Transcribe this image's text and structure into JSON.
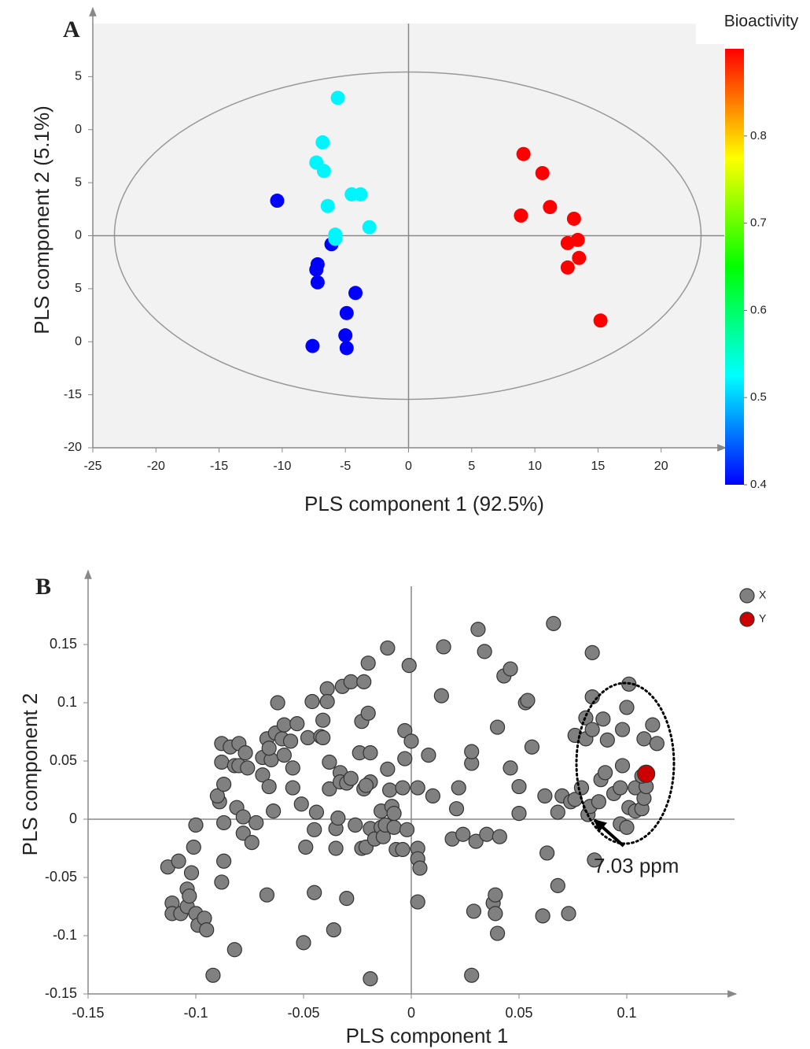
{
  "chart_data": [
    {
      "type": "scatter",
      "panel": "A",
      "xlabel": "PLS component 1 (92.5%)",
      "ylabel": "PLS component 2 (5.1%)",
      "xlim": [
        -25,
        25
      ],
      "ylim": [
        -20,
        20
      ],
      "xticks": [
        -25,
        -20,
        -15,
        -10,
        -5,
        0,
        5,
        10,
        15,
        20
      ],
      "yticks": [
        {
          "value": 15,
          "label": "5"
        },
        {
          "value": 10,
          "label": "0"
        },
        {
          "value": 5,
          "label": "5"
        },
        0,
        {
          "value": -5,
          "label": "5"
        },
        {
          "value": -10,
          "label": "0"
        },
        -15,
        -20
      ],
      "background": "#f2f2f2",
      "x": [
        -10.4,
        -6.1,
        -7.2,
        -7.3,
        -7.2,
        -4.2,
        -4.9,
        -5.0,
        -4.9,
        -7.6,
        -5.6,
        -6.8,
        -7.3,
        -6.7,
        -4.5,
        -3.8,
        -6.4,
        -3.1,
        -5.8,
        -5.8,
        9.1,
        10.6,
        11.2,
        8.9,
        13.1,
        13.4,
        12.6,
        13.5,
        12.6,
        15.2
      ],
      "y": [
        3.3,
        -0.8,
        -2.7,
        -3.2,
        -4.4,
        -5.4,
        -7.3,
        -9.4,
        -10.6,
        -10.4,
        13.0,
        8.8,
        6.9,
        6.1,
        3.9,
        3.9,
        2.8,
        0.8,
        0.1,
        -0.3,
        7.7,
        5.9,
        2.7,
        1.9,
        1.6,
        -0.4,
        -0.7,
        -2.1,
        -3.0,
        -8.0
      ],
      "bioactivity": [
        0.4,
        0.4,
        0.4,
        0.4,
        0.4,
        0.4,
        0.4,
        0.4,
        0.4,
        0.4,
        0.52,
        0.52,
        0.52,
        0.52,
        0.52,
        0.52,
        0.52,
        0.52,
        0.52,
        0.52,
        0.9,
        0.9,
        0.9,
        0.9,
        0.9,
        0.9,
        0.9,
        0.9,
        0.9,
        0.9
      ],
      "colorbar": {
        "title": "Bioactivity",
        "lim": [
          0.4,
          0.9
        ],
        "ticks": [
          0.4,
          0.5,
          0.6,
          0.7,
          0.8
        ]
      }
    },
    {
      "type": "scatter",
      "panel": "B",
      "xlabel": "PLS component 1",
      "ylabel": "PLS component 2",
      "xlim": [
        -0.15,
        0.15
      ],
      "ylim": [
        -0.15,
        0.2
      ],
      "xticks": [
        -0.15,
        -0.1,
        -0.05,
        0,
        0.05,
        0.1
      ],
      "yticks": [
        -0.15,
        -0.1,
        -0.05,
        0,
        0.05,
        0.1,
        0.15
      ],
      "legend": "top-right",
      "annotation": "7.03 ppm",
      "series": [
        {
          "name": "X",
          "color": "#808080",
          "x": [
            -0.113,
            -0.111,
            -0.111,
            -0.108,
            -0.107,
            -0.104,
            -0.104,
            -0.103,
            -0.101,
            -0.1,
            -0.102,
            -0.1,
            -0.099,
            -0.096,
            -0.095,
            -0.092,
            -0.089,
            -0.09,
            -0.088,
            -0.088,
            -0.087,
            -0.087,
            -0.087,
            -0.088,
            -0.084,
            -0.082,
            -0.081,
            -0.08,
            -0.08,
            -0.078,
            -0.078,
            -0.077,
            -0.076,
            -0.074,
            -0.072,
            -0.082,
            -0.069,
            -0.069,
            -0.066,
            -0.067,
            -0.067,
            -0.065,
            -0.066,
            -0.064,
            -0.063,
            -0.062,
            -0.06,
            -0.059,
            -0.059,
            -0.056,
            -0.055,
            -0.055,
            -0.053,
            -0.051,
            -0.05,
            -0.049,
            -0.048,
            -0.046,
            -0.045,
            -0.045,
            -0.044,
            -0.042,
            -0.041,
            -0.041,
            -0.039,
            -0.039,
            -0.038,
            -0.038,
            -0.036,
            -0.035,
            -0.035,
            -0.034,
            -0.033,
            -0.033,
            -0.032,
            -0.03,
            -0.03,
            -0.028,
            -0.028,
            -0.026,
            -0.024,
            -0.023,
            -0.023,
            -0.022,
            -0.022,
            -0.021,
            -0.02,
            -0.019,
            -0.02,
            -0.021,
            -0.019,
            -0.019,
            -0.019,
            -0.017,
            -0.014,
            -0.014,
            -0.013,
            -0.012,
            -0.011,
            -0.011,
            -0.01,
            -0.009,
            -0.008,
            -0.008,
            -0.007,
            -0.004,
            -0.004,
            -0.003,
            -0.003,
            -0.002,
            -0.001,
            0.0,
            0.003,
            0.003,
            0.004,
            0.003,
            0.003,
            0.008,
            0.01,
            0.014,
            0.015,
            0.019,
            0.021,
            0.022,
            0.024,
            0.028,
            0.028,
            0.028,
            0.029,
            0.031,
            0.03,
            0.034,
            0.035,
            0.038,
            0.039,
            0.039,
            0.04,
            0.04,
            0.041,
            0.043,
            0.046,
            0.046,
            0.05,
            0.05,
            0.053,
            0.054,
            0.056,
            0.061,
            0.062,
            0.063,
            0.066,
            0.068,
            0.068,
            0.07,
            0.073,
            0.074,
            0.076,
            0.076,
            0.079,
            0.081,
            0.081,
            0.082,
            0.083,
            0.084,
            0.084,
            0.084,
            0.085,
            0.087,
            0.088,
            0.089,
            0.09,
            0.091,
            0.094,
            0.097,
            0.097,
            0.098,
            0.098,
            0.1,
            0.101,
            0.1,
            0.101,
            0.104,
            0.104,
            0.107,
            0.108,
            0.108,
            0.109,
            0.107,
            0.112,
            0.114
          ],
          "values": [
            -0.041,
            -0.072,
            -0.081,
            -0.036,
            -0.081,
            -0.075,
            -0.06,
            -0.066,
            -0.024,
            -0.005,
            -0.046,
            -0.081,
            -0.091,
            -0.085,
            -0.095,
            -0.134,
            0.015,
            0.02,
            0.049,
            0.065,
            0.03,
            -0.003,
            -0.036,
            -0.054,
            0.062,
            0.046,
            0.01,
            0.046,
            0.065,
            -0.012,
            0.002,
            0.057,
            0.044,
            -0.02,
            -0.003,
            -0.112,
            0.038,
            0.053,
            0.028,
            0.069,
            -0.065,
            0.051,
            0.061,
            0.007,
            0.074,
            0.1,
            0.069,
            0.055,
            0.081,
            0.067,
            0.027,
            0.044,
            0.082,
            0.013,
            -0.106,
            -0.024,
            0.07,
            0.101,
            -0.063,
            -0.009,
            0.006,
            0.071,
            0.085,
            0.07,
            0.112,
            0.101,
            0.026,
            0.049,
            -0.095,
            -0.025,
            -0.008,
            0.001,
            0.04,
            0.032,
            0.114,
            0.031,
            -0.068,
            0.118,
            0.035,
            -0.005,
            0.057,
            0.084,
            -0.025,
            0.026,
            0.118,
            -0.024,
            0.134,
            0.032,
            0.091,
            0.029,
            -0.008,
            -0.137,
            0.057,
            -0.017,
            0.007,
            -0.007,
            -0.015,
            -0.005,
            0.147,
            0.043,
            0.025,
            0.011,
            -0.007,
            0.005,
            -0.026,
            -0.026,
            0.027,
            0.076,
            0.052,
            -0.009,
            0.132,
            0.067,
            -0.025,
            -0.034,
            -0.042,
            -0.071,
            0.027,
            0.055,
            0.02,
            0.106,
            0.148,
            -0.017,
            0.009,
            0.027,
            -0.013,
            0.048,
            0.058,
            -0.134,
            -0.079,
            0.163,
            -0.019,
            0.144,
            -0.013,
            -0.072,
            -0.065,
            -0.081,
            -0.098,
            0.079,
            -0.015,
            0.123,
            0.129,
            0.044,
            0.005,
            0.028,
            0.1,
            0.102,
            0.062,
            -0.083,
            0.02,
            -0.029,
            0.168,
            0.006,
            -0.057,
            0.02,
            -0.081,
            0.015,
            0.072,
            0.017,
            0.027,
            0.087,
            0.069,
            0.004,
            0.011,
            0.143,
            0.105,
            0.077,
            -0.035,
            0.015,
            0.034,
            0.086,
            0.04,
            0.068,
            0.022,
            -0.004,
            0.027,
            0.046,
            0.077,
            -0.007,
            0.116,
            0.096,
            0.01,
            0.007,
            0.027,
            0.009,
            0.018,
            0.069,
            0.028,
            0.037,
            0.081,
            0.065
          ]
        },
        {
          "name": "Y",
          "color": "#cc0000",
          "x": [
            0.109
          ],
          "values": [
            0.039
          ]
        }
      ]
    }
  ]
}
